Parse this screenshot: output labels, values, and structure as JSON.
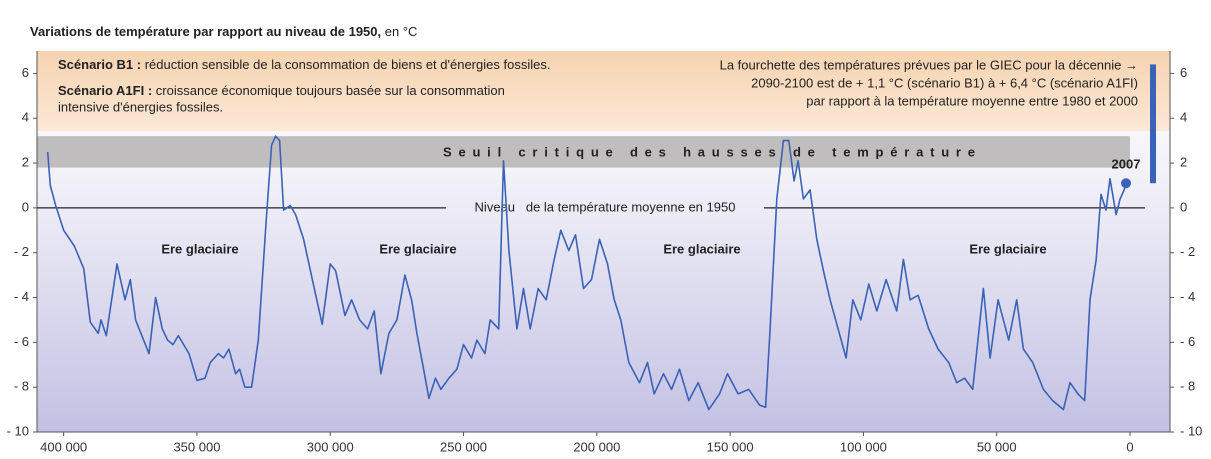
{
  "chart_data": {
    "type": "line",
    "title": "Variations de température par rapport au niveau de 1950,",
    "title_suffix": "en °C",
    "scenario_b1": {
      "name": "Scénario B1 :",
      "text": "réduction sensible de la consommation de biens et d'énergies fossiles."
    },
    "scenario_a1fi": {
      "name": "Scénario A1FI :",
      "text": [
        "croissance économique toujours basée sur la consommation",
        "intensive d'énergies fossiles."
      ]
    },
    "giec_note": [
      "La fourchette des températures prévues par le GIEC pour la décennie →",
      "2090-2100 est de + 1,1 °C (scénario B1) à + 6,4 °C (scénario A1FI)",
      "par rapport à la température moyenne entre 1980 et 2000"
    ],
    "giec_range": [
      1.1,
      6.4
    ],
    "threshold_label": "Seuil critique des hausses de température",
    "threshold_band": [
      1.8,
      3.2
    ],
    "reference_line": 0,
    "reference_label": "Niveau   de la température moyenne en 1950",
    "glacial_labels": [
      "Ere glaciaire",
      "Ere glaciaire",
      "Ere glaciaire",
      "Ere glaciaire"
    ],
    "end_label": "2007",
    "xlim": [
      410000,
      -15000
    ],
    "xticks": [
      {
        "value": 400000,
        "label": "400 000"
      },
      {
        "value": 350000,
        "label": "350 000"
      },
      {
        "value": 300000,
        "label": "300 000"
      },
      {
        "value": 250000,
        "label": "250 000"
      },
      {
        "value": 200000,
        "label": "200 000"
      },
      {
        "value": 150000,
        "label": "150 000"
      },
      {
        "value": 100000,
        "label": "100 000"
      },
      {
        "value": 50000,
        "label": "50 000"
      },
      0
    ],
    "ylim": [
      -10,
      7
    ],
    "yticks": [
      {
        "value": -10,
        "label": "- 10"
      },
      {
        "value": -8,
        "label": "- 8"
      },
      {
        "value": -6,
        "label": "- 6"
      },
      {
        "value": -4,
        "label": "- 4"
      },
      {
        "value": -2,
        "label": "- 2"
      },
      0,
      2,
      4,
      6
    ],
    "x": [
      406000,
      405000,
      403000,
      400000,
      396000,
      392500,
      390000,
      387000,
      386000,
      384000,
      380000,
      377000,
      375000,
      373000,
      370000,
      368000,
      365500,
      363000,
      361000,
      359000,
      357000,
      353000,
      350000,
      347000,
      345000,
      342000,
      340000,
      338000,
      335500,
      334000,
      332000,
      329500,
      327000,
      324000,
      322000,
      320500,
      319000,
      317500,
      315000,
      313000,
      310000,
      306000,
      303000,
      300000,
      298000,
      294500,
      292000,
      289000,
      286000,
      283500,
      281000,
      278000,
      275000,
      272000,
      269500,
      267500,
      265000,
      263000,
      260500,
      258500,
      255500,
      252500,
      250000,
      247000,
      245000,
      242000,
      240000,
      236800,
      235000,
      233000,
      230000,
      227500,
      225000,
      222000,
      219000,
      216000,
      213500,
      210500,
      208000,
      205000,
      202000,
      199000,
      196000,
      193500,
      191000,
      188000,
      184000,
      181000,
      178500,
      175000,
      172000,
      169000,
      165500,
      162000,
      158000,
      154000,
      151000,
      147000,
      143000,
      139000,
      136700,
      135000,
      132500,
      130000,
      128000,
      126000,
      124500,
      122500,
      120000,
      117500,
      115000,
      112500,
      109500,
      106500,
      104000,
      101000,
      98000,
      95000,
      91500,
      87500,
      85000,
      82500,
      79500,
      75500,
      72000,
      68000,
      65000,
      62000,
      59000,
      55000,
      52500,
      49500,
      45500,
      42500,
      40000,
      36500,
      32500,
      29000,
      25000,
      22500,
      19500,
      17000,
      15000,
      12700,
      10900,
      9000,
      7500,
      5200,
      3700,
      2200,
      1500
    ],
    "series": [
      {
        "name": "Température",
        "color": "#3a62b6",
        "values": [
          2.5,
          1.0,
          0.1,
          -1.0,
          -1.7,
          -2.7,
          -5.1,
          -5.6,
          -5.0,
          -5.7,
          -2.5,
          -4.1,
          -3.2,
          -5.0,
          -5.9,
          -6.5,
          -4.0,
          -5.4,
          -5.9,
          -6.1,
          -5.7,
          -6.5,
          -7.7,
          -7.6,
          -6.9,
          -6.5,
          -6.7,
          -6.3,
          -7.4,
          -7.2,
          -8.0,
          -8.0,
          -5.9,
          -0.5,
          2.8,
          3.2,
          3.0,
          -0.1,
          0.1,
          -0.3,
          -1.4,
          -3.6,
          -5.2,
          -2.5,
          -2.8,
          -4.8,
          -4.1,
          -5.0,
          -5.4,
          -4.6,
          -7.4,
          -5.6,
          -5.0,
          -3.0,
          -4.1,
          -5.6,
          -7.2,
          -8.5,
          -7.6,
          -8.1,
          -7.6,
          -7.2,
          -6.1,
          -6.7,
          -5.9,
          -6.5,
          -5.0,
          -5.4,
          2.1,
          -1.9,
          -5.4,
          -3.6,
          -5.4,
          -3.6,
          -4.1,
          -2.3,
          -1.0,
          -1.9,
          -1.2,
          -3.6,
          -3.2,
          -1.4,
          -2.5,
          -4.1,
          -5.0,
          -6.9,
          -7.8,
          -6.9,
          -8.3,
          -7.4,
          -8.1,
          -7.2,
          -8.6,
          -7.8,
          -9.0,
          -8.3,
          -7.4,
          -8.3,
          -8.1,
          -8.8,
          -8.9,
          -5.4,
          0.4,
          3.0,
          3.0,
          1.2,
          2.1,
          0.4,
          0.8,
          -1.4,
          -2.8,
          -4.1,
          -5.4,
          -6.7,
          -4.1,
          -5.0,
          -3.4,
          -4.6,
          -3.2,
          -4.6,
          -2.3,
          -4.1,
          -3.9,
          -5.4,
          -6.3,
          -6.9,
          -7.8,
          -7.6,
          -8.1,
          -3.6,
          -6.7,
          -4.1,
          -5.9,
          -4.1,
          -6.3,
          -6.9,
          -8.1,
          -8.6,
          -9.0,
          -7.8,
          -8.3,
          -8.6,
          -4.1,
          -2.3,
          0.6,
          -0.1,
          1.3,
          -0.3,
          0.4,
          0.8,
          1.1
        ]
      }
    ]
  }
}
